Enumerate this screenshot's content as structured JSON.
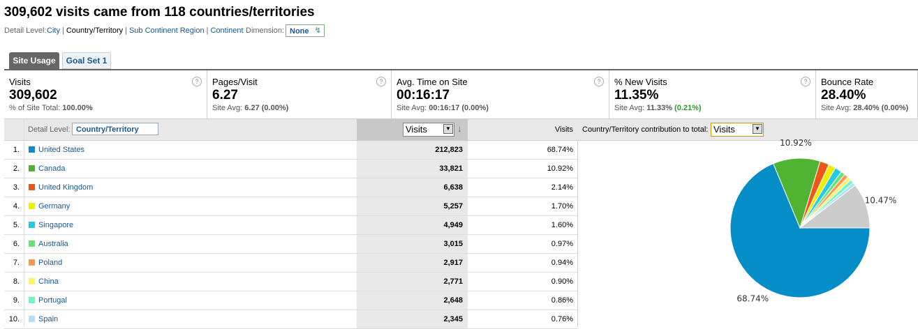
{
  "header": {
    "title": "309,602 visits came from 118 countries/territories",
    "detail_label": "Detail Level:",
    "detail_links": [
      "City",
      "Country/Territory",
      "Sub Continent Region",
      "Continent"
    ],
    "dimension_label": "Dimension:",
    "dimension_value": "None"
  },
  "tabs": [
    "Site Usage",
    "Goal Set 1"
  ],
  "metrics": [
    {
      "label": "Visits",
      "value": "309,602",
      "sub_label": "% of Site Total:",
      "sub_value": "100.00%"
    },
    {
      "label": "Pages/Visit",
      "value": "6.27",
      "sub_label": "Site Avg:",
      "sub_value": "6.27",
      "sub_change": "(0.00%)"
    },
    {
      "label": "Avg. Time on Site",
      "value": "00:16:17",
      "sub_label": "Site Avg:",
      "sub_value": "00:16:17",
      "sub_change": "(0.00%)"
    },
    {
      "label": "% New Visits",
      "value": "11.35%",
      "sub_label": "Site Avg:",
      "sub_value": "11.33%",
      "sub_change": "(0.21%)"
    },
    {
      "label": "Bounce Rate",
      "value": "28.40%",
      "sub_label": "Site Avg:",
      "sub_value": "28.40%",
      "sub_change": "(0.00%)"
    }
  ],
  "table": {
    "detail_label": "Detail Level:",
    "detail_value": "Country/Territory",
    "metric_select": "Visits",
    "col_header": "Visits",
    "contribution_label": "Country/Territory contribution to total:",
    "contribution_select": "Visits",
    "rows": [
      [
        "1.",
        "United States",
        "212,823",
        "68.74%"
      ],
      [
        "2.",
        "Canada",
        "33,821",
        "10.92%"
      ],
      [
        "3.",
        "United Kingdom",
        "6,638",
        "2.14%"
      ],
      [
        "4.",
        "Germany",
        "5,257",
        "1.70%"
      ],
      [
        "5.",
        "Singapore",
        "4,949",
        "1.60%"
      ],
      [
        "6.",
        "Australia",
        "3,015",
        "0.97%"
      ],
      [
        "7.",
        "Poland",
        "2,917",
        "0.94%"
      ],
      [
        "8.",
        "China",
        "2,771",
        "0.90%"
      ],
      [
        "9.",
        "Portugal",
        "2,648",
        "0.86%"
      ],
      [
        "10.",
        "Spain",
        "2,345",
        "0.76%"
      ]
    ]
  },
  "chart_data": {
    "type": "pie",
    "values": [
      68.74,
      10.92,
      2.14,
      1.7,
      1.6,
      0.97,
      0.94,
      0.9,
      0.86,
      0.76,
      10.47
    ],
    "value_labels": [
      "68.74%",
      "10.92%",
      null,
      null,
      null,
      null,
      null,
      null,
      null,
      null,
      "10.47%"
    ],
    "colors": [
      "#058dc7",
      "#50b432",
      "#ed561b",
      "#edef00",
      "#24cbe5",
      "#64e572",
      "#ff9655",
      "#fff263",
      "#6af9c4",
      "#b2deff",
      "#cccccc"
    ]
  }
}
